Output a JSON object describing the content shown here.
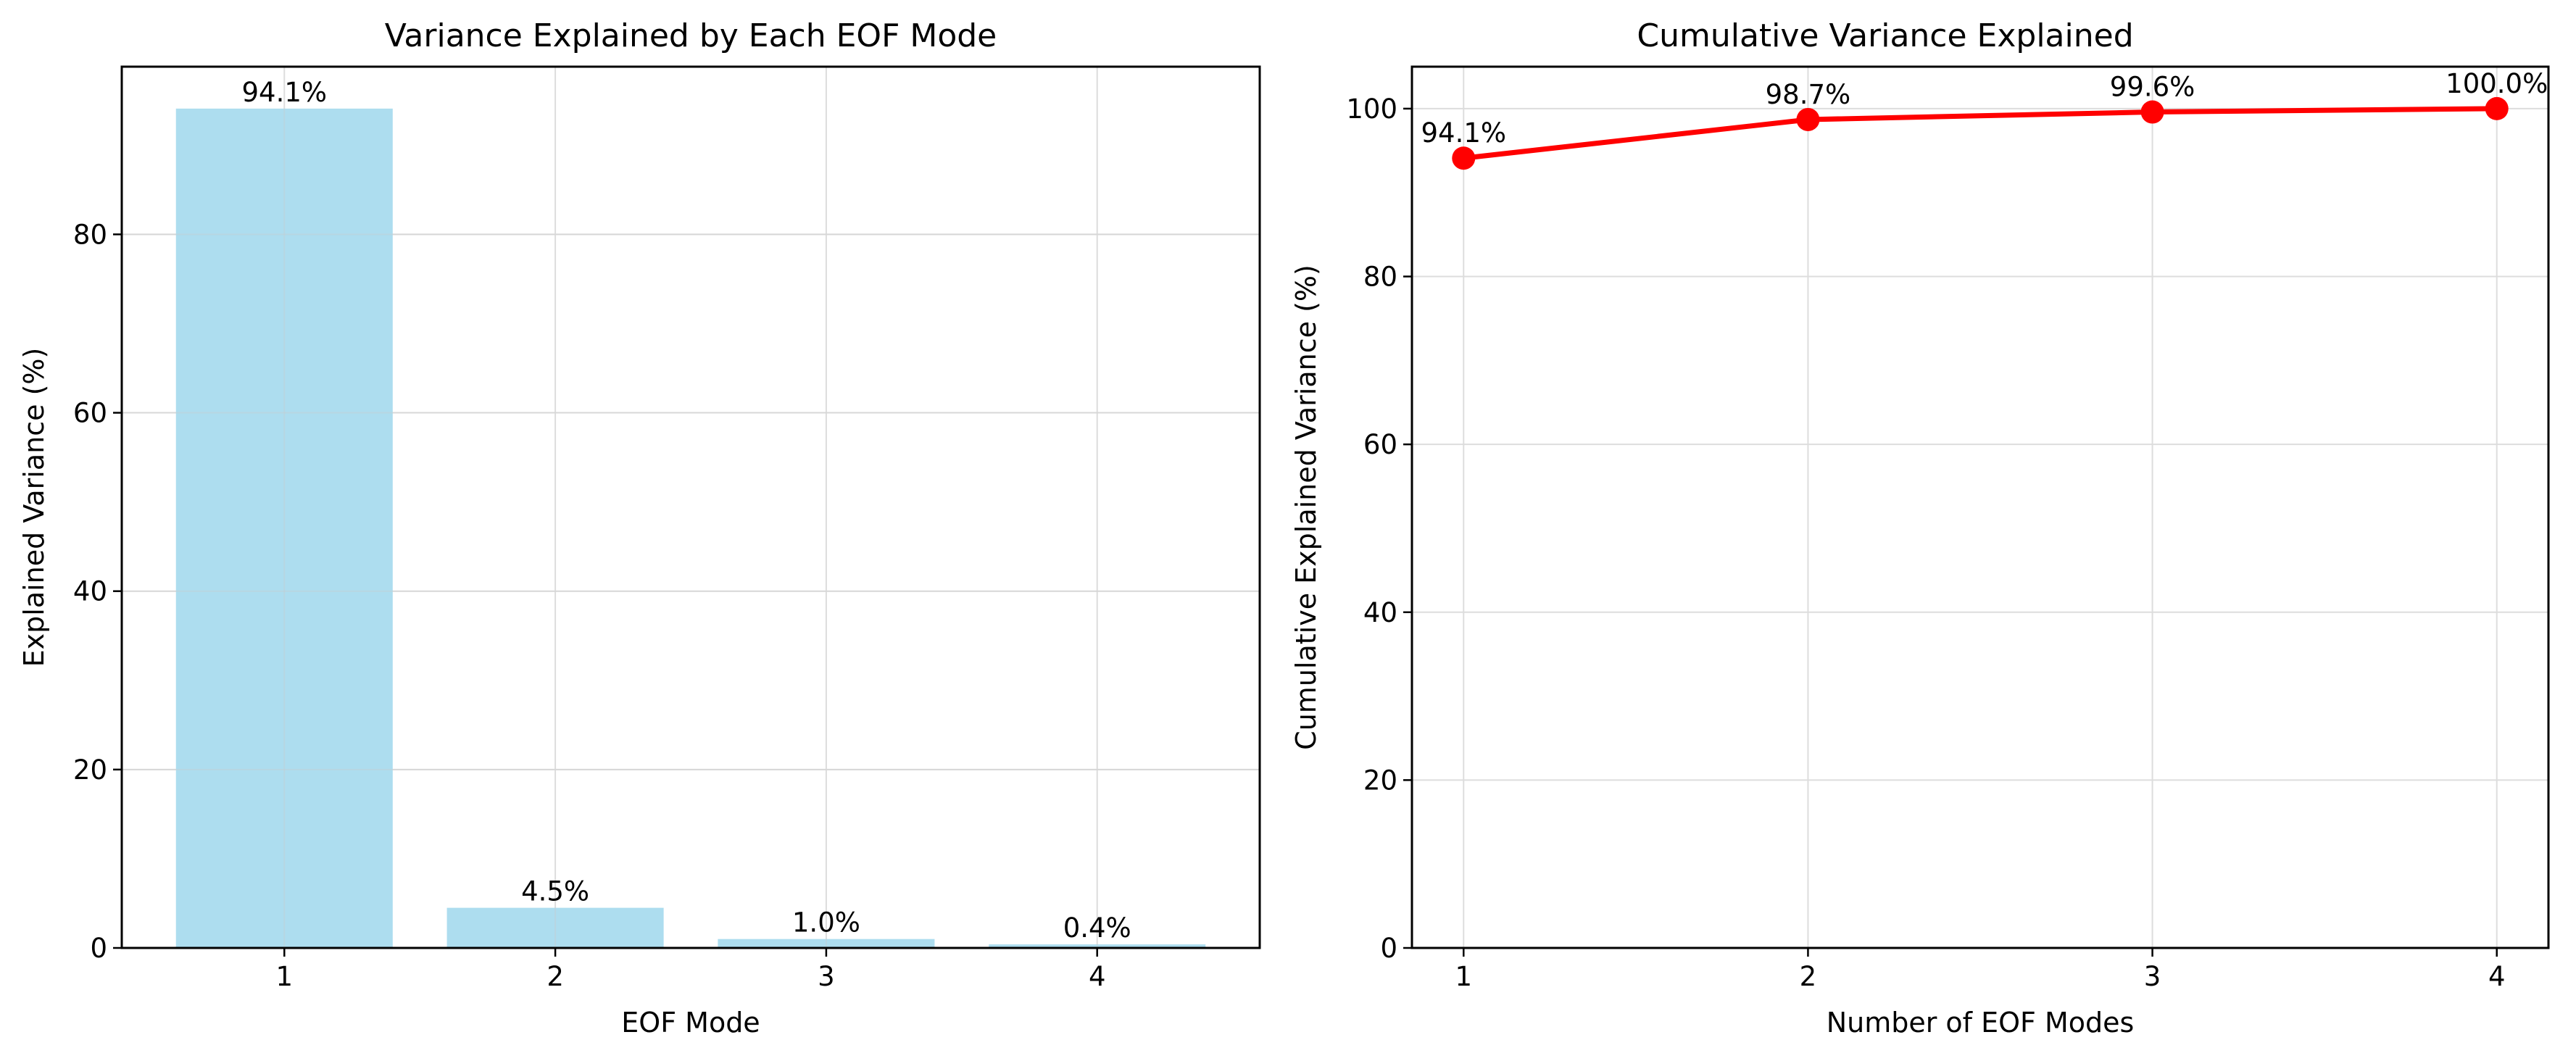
{
  "chart_data": [
    {
      "type": "bar",
      "title": "Variance Explained by Each EOF Mode",
      "xlabel": "EOF Mode",
      "ylabel": "Explained Variance (%)",
      "categories": [
        "1",
        "2",
        "3",
        "4"
      ],
      "values": [
        94.1,
        4.5,
        1.0,
        0.4
      ],
      "data_labels": [
        "94.1%",
        "4.5%",
        "1.0%",
        "0.4%"
      ],
      "ylim": [
        0,
        98.8
      ],
      "yticks": [
        0,
        20,
        40,
        60,
        80
      ],
      "xticks": [
        1,
        2,
        3,
        4
      ],
      "grid": true,
      "legend": "none",
      "bar_color": "#a9dbee"
    },
    {
      "type": "line",
      "title": "Cumulative Variance Explained",
      "xlabel": "Number of EOF Modes",
      "ylabel": "Cumulative Explained Variance (%)",
      "x": [
        1,
        2,
        3,
        4
      ],
      "values": [
        94.1,
        98.7,
        99.6,
        100.0
      ],
      "data_labels": [
        "94.1%",
        "98.7%",
        "99.6%",
        "100.0%"
      ],
      "xlim": [
        0.85,
        4.15
      ],
      "ylim": [
        0,
        105
      ],
      "yticks": [
        0,
        20,
        40,
        60,
        80,
        100
      ],
      "xticks": [
        1,
        2,
        3,
        4
      ],
      "grid": true,
      "legend": "none",
      "line_color": "#ff0000"
    }
  ]
}
